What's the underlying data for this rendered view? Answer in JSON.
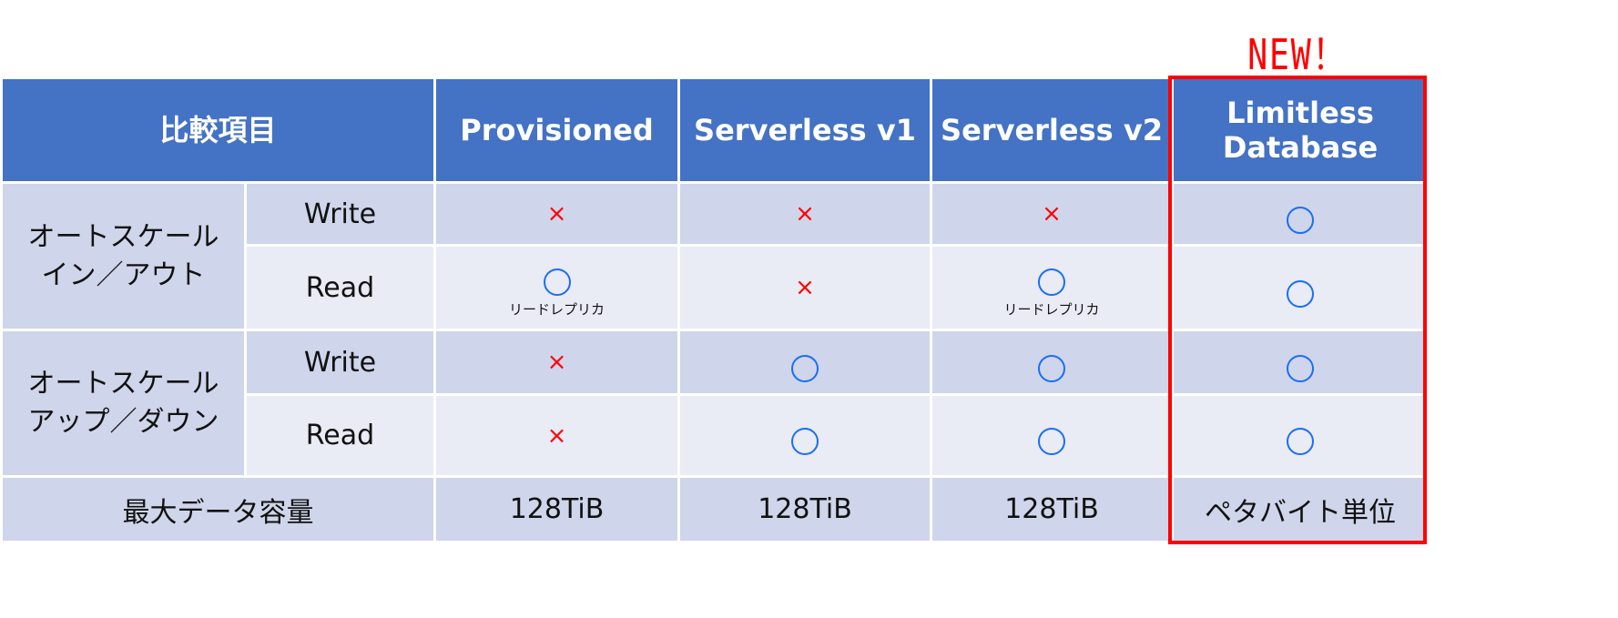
{
  "badge": "NEW！",
  "header": [
    "比較項目",
    "Provisioned",
    "Serverless v1",
    "Serverless v2",
    "Limitless\nDatabase"
  ],
  "groups": [
    {
      "label": "オートスケール\nイン／アウト",
      "rows": [
        {
          "label": "Write",
          "cells": [
            {
              "mark": "×"
            },
            {
              "mark": "×"
            },
            {
              "mark": "×"
            },
            {
              "mark": "○"
            }
          ]
        },
        {
          "label": "Read",
          "cells": [
            {
              "mark": "○",
              "note": "リードレプリカ"
            },
            {
              "mark": "×"
            },
            {
              "mark": "○",
              "note": "リードレプリカ"
            },
            {
              "mark": "○"
            }
          ]
        }
      ]
    },
    {
      "label": "オートスケール\nアップ／ダウン",
      "rows": [
        {
          "label": "Write",
          "cells": [
            {
              "mark": "×"
            },
            {
              "mark": "○"
            },
            {
              "mark": "○"
            },
            {
              "mark": "○"
            }
          ]
        },
        {
          "label": "Read",
          "cells": [
            {
              "mark": "×"
            },
            {
              "mark": "○"
            },
            {
              "mark": "○"
            },
            {
              "mark": "○"
            }
          ]
        }
      ]
    }
  ],
  "capacity": {
    "label": "最大データ容量",
    "values": [
      "128TiB",
      "128TiB",
      "128TiB",
      "ペタバイト単位"
    ]
  },
  "colors": {
    "header": "#4472c4",
    "row_dark": "#cfd5ea",
    "row_light": "#e9ebf5",
    "circle": "#1a6ef5",
    "cross": "#ff0000",
    "highlight": "#ff0000"
  }
}
